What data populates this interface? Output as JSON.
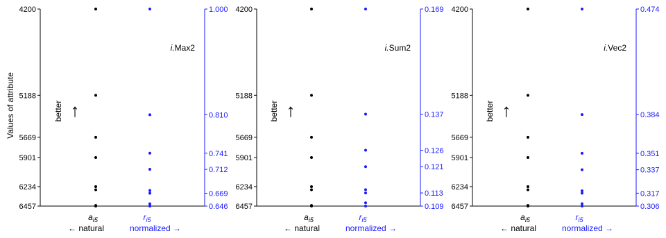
{
  "figure": {
    "ylabel": "Values of attribute",
    "better_label": "better",
    "better_arrow": "↑",
    "x_natural_symbol": "a",
    "x_natural_subscript": "i5",
    "x_normalized_symbol": "r",
    "x_normalized_subscript": "i5",
    "x_natural_caption": "← natural",
    "x_normalized_caption": "normalized →",
    "natural_color": "#000000",
    "normalized_color": "#1a1aff"
  },
  "chart_data": [
    {
      "type": "scatter",
      "title_prefix": "i.",
      "title_name": "Max2",
      "left_axis": {
        "ylim": [
          4200,
          6457
        ],
        "ticks": [
          "4200",
          "5188",
          "5669",
          "5901",
          "6234",
          "6457"
        ]
      },
      "right_axis": {
        "ylim": [
          0.646,
          1.0
        ],
        "ticks": [
          "1.000",
          "0.810",
          "0.741",
          "0.712",
          "0.669",
          "0.646"
        ]
      },
      "natural_values": [
        4200,
        5188,
        5669,
        5901,
        6234,
        6270,
        6450,
        6457
      ],
      "normalized_values": [
        1.0,
        0.81,
        0.741,
        0.712,
        0.674,
        0.669,
        0.65,
        0.646
      ]
    },
    {
      "type": "scatter",
      "title_prefix": "i.",
      "title_name": "Sum2",
      "left_axis": {
        "ylim": [
          4200,
          6457
        ],
        "ticks": [
          "4200",
          "5188",
          "5669",
          "5901",
          "6234",
          "6457"
        ]
      },
      "right_axis": {
        "ylim": [
          0.109,
          0.169
        ],
        "ticks": [
          "0.169",
          "0.137",
          "0.126",
          "0.121",
          "0.113",
          "0.109"
        ]
      },
      "natural_values": [
        4200,
        5188,
        5669,
        5901,
        6234,
        6270,
        6450,
        6457
      ],
      "normalized_values": [
        0.169,
        0.137,
        0.126,
        0.121,
        0.114,
        0.113,
        0.11,
        0.109
      ]
    },
    {
      "type": "scatter",
      "title_prefix": "i.",
      "title_name": "Vec2",
      "left_axis": {
        "ylim": [
          4200,
          6457
        ],
        "ticks": [
          "4200",
          "5188",
          "5669",
          "5901",
          "6234",
          "6457"
        ]
      },
      "right_axis": {
        "ylim": [
          0.306,
          0.474
        ],
        "ticks": [
          "0.474",
          "0.384",
          "0.351",
          "0.337",
          "0.317",
          "0.306"
        ]
      },
      "natural_values": [
        4200,
        5188,
        5669,
        5901,
        6234,
        6270,
        6450,
        6457
      ],
      "normalized_values": [
        0.474,
        0.384,
        0.351,
        0.337,
        0.319,
        0.317,
        0.308,
        0.306
      ]
    }
  ]
}
